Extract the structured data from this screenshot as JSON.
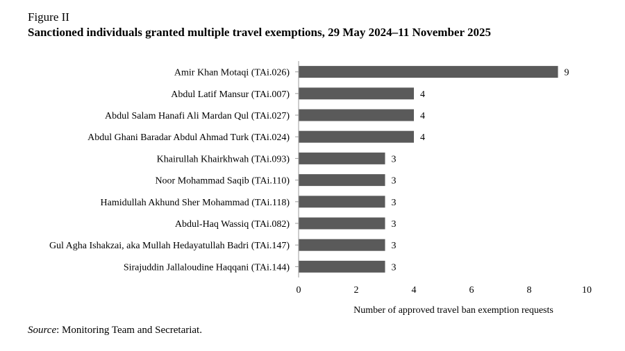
{
  "figure": {
    "label": "Figure II",
    "title": "Sanctioned individuals granted multiple travel exemptions, 29 May 2024–11 November 2025"
  },
  "source": {
    "prefix": "Source",
    "text": ": Monitoring Team and Secretariat."
  },
  "chart_data": {
    "type": "bar",
    "orientation": "horizontal",
    "categories": [
      "Amir Khan Motaqi (TAi.026)",
      "Abdul Latif Mansur (TAi.007)",
      "Abdul Salam Hanafi Ali Mardan Qul (TAi.027)",
      "Abdul Ghani Baradar Abdul Ahmad Turk (TAi.024)",
      "Khairullah Khairkhwah (TAi.093)",
      "Noor Mohammad Saqib (TAi.110)",
      "Hamidullah Akhund Sher Mohammad (TAi.118)",
      "Abdul-Haq Wassiq (TAi.082)",
      "Gul Agha Ishakzai, aka Mullah Hedayatullah Badri (TAi.147)",
      "Sirajuddin Jallaloudine Haqqani (TAi.144)"
    ],
    "values": [
      9,
      4,
      4,
      4,
      3,
      3,
      3,
      3,
      3,
      3
    ],
    "xlabel": "Number of approved travel ban exemption requests",
    "xlim": [
      0,
      10
    ],
    "xticks": [
      0,
      2,
      4,
      6,
      8,
      10
    ],
    "bar_color": "#5a5a5a",
    "grid": false,
    "data_labels": true
  }
}
